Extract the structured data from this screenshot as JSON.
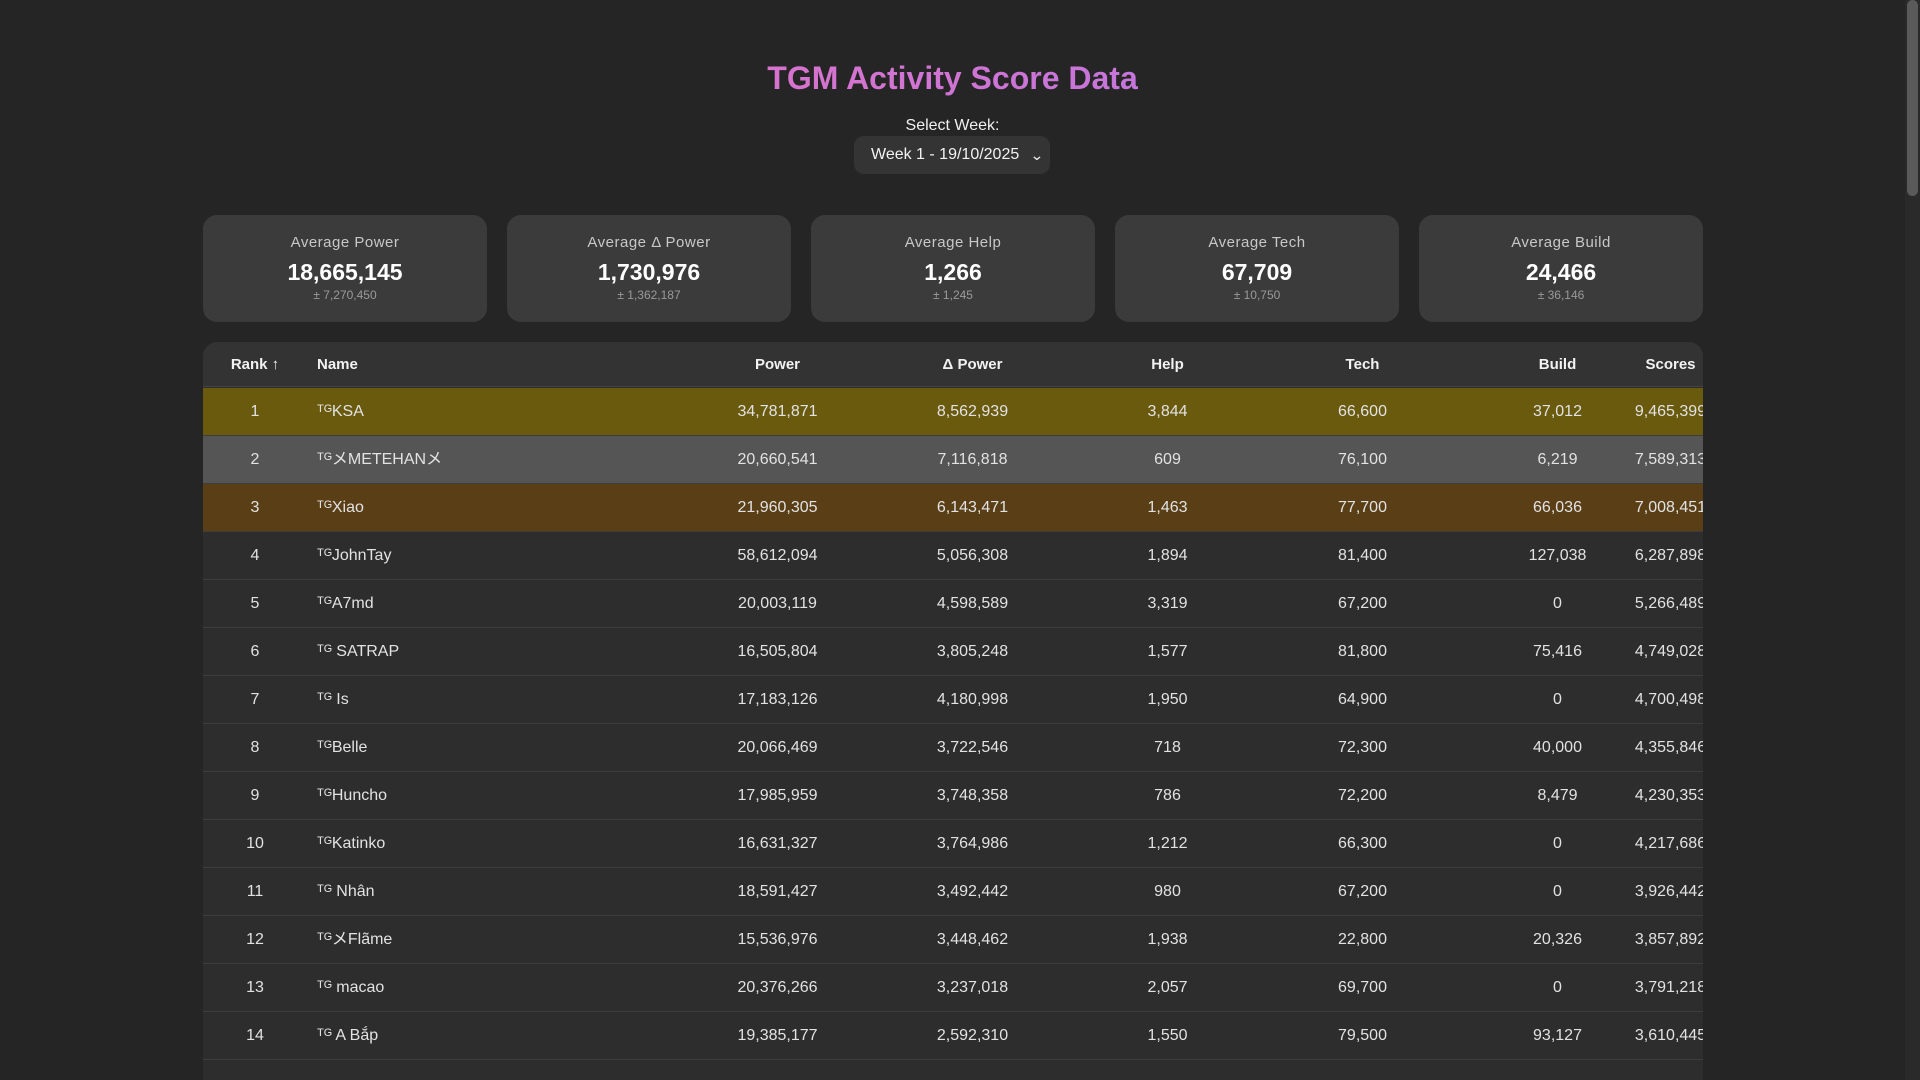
{
  "title": "TGM Activity Score Data",
  "week_label": "Select Week:",
  "week_selected": "Week 1 - 19/10/2025",
  "cards": [
    {
      "label": "Average Power",
      "value": "18,665,145",
      "std": "± 7,270,450"
    },
    {
      "label": "Average Δ Power",
      "value": "1,730,976",
      "std": "± 1,362,187"
    },
    {
      "label": "Average Help",
      "value": "1,266",
      "std": "± 1,245"
    },
    {
      "label": "Average Tech",
      "value": "67,709",
      "std": "± 10,750"
    },
    {
      "label": "Average Build",
      "value": "24,466",
      "std": "± 36,146"
    }
  ],
  "table": {
    "headers": {
      "rank": "Rank ↑",
      "name": "Name",
      "power": "Power",
      "dpower": "Δ Power",
      "help": "Help",
      "tech": "Tech",
      "build": "Build",
      "scores": "Scores"
    },
    "rows": [
      {
        "rank": "1",
        "name": "ᵀᴳKSA",
        "power": "34,781,871",
        "dpower": "8,562,939",
        "help": "3,844",
        "tech": "66,600",
        "build": "37,012",
        "scores": "9,465,399"
      },
      {
        "rank": "2",
        "name": "ᵀᴳメMETEHANメ",
        "power": "20,660,541",
        "dpower": "7,116,818",
        "help": "609",
        "tech": "76,100",
        "build": "6,219",
        "scores": "7,589,313"
      },
      {
        "rank": "3",
        "name": "ᵀᴳXiao",
        "power": "21,960,305",
        "dpower": "6,143,471",
        "help": "1,463",
        "tech": "77,700",
        "build": "66,036",
        "scores": "7,008,451"
      },
      {
        "rank": "4",
        "name": "ᵀᴳJohnTay",
        "power": "58,612,094",
        "dpower": "5,056,308",
        "help": "1,894",
        "tech": "81,400",
        "build": "127,038",
        "scores": "6,287,898"
      },
      {
        "rank": "5",
        "name": "ᵀᴳA7md",
        "power": "20,003,119",
        "dpower": "4,598,589",
        "help": "3,319",
        "tech": "67,200",
        "build": "0",
        "scores": "5,266,489"
      },
      {
        "rank": "6",
        "name": "ᵀᴳ SATRAP",
        "power": "16,505,804",
        "dpower": "3,805,248",
        "help": "1,577",
        "tech": "81,800",
        "build": "75,416",
        "scores": "4,749,028"
      },
      {
        "rank": "7",
        "name": "ᵀᴳ Is",
        "power": "17,183,126",
        "dpower": "4,180,998",
        "help": "1,950",
        "tech": "64,900",
        "build": "0",
        "scores": "4,700,498"
      },
      {
        "rank": "8",
        "name": "ᵀᴳBelle",
        "power": "20,066,469",
        "dpower": "3,722,546",
        "help": "718",
        "tech": "72,300",
        "build": "40,000",
        "scores": "4,355,846"
      },
      {
        "rank": "9",
        "name": "ᵀᴳHuncho",
        "power": "17,985,959",
        "dpower": "3,748,358",
        "help": "786",
        "tech": "72,200",
        "build": "8,479",
        "scores": "4,230,353"
      },
      {
        "rank": "10",
        "name": "ᵀᴳKatinko",
        "power": "16,631,327",
        "dpower": "3,764,986",
        "help": "1,212",
        "tech": "66,300",
        "build": "0",
        "scores": "4,217,686"
      },
      {
        "rank": "11",
        "name": "ᵀᴳ Nhân",
        "power": "18,591,427",
        "dpower": "3,492,442",
        "help": "980",
        "tech": "67,200",
        "build": "0",
        "scores": "3,926,442"
      },
      {
        "rank": "12",
        "name": "ᵀᴳメFlãme",
        "power": "15,536,976",
        "dpower": "3,448,462",
        "help": "1,938",
        "tech": "22,800",
        "build": "20,326",
        "scores": "3,857,892"
      },
      {
        "rank": "13",
        "name": "ᵀᴳ macao",
        "power": "20,376,266",
        "dpower": "3,237,018",
        "help": "2,057",
        "tech": "69,700",
        "build": "0",
        "scores": "3,791,218"
      },
      {
        "rank": "14",
        "name": "ᵀᴳ A Bắp",
        "power": "19,385,177",
        "dpower": "2,592,310",
        "help": "1,550",
        "tech": "79,500",
        "build": "93,127",
        "scores": "3,610,445"
      }
    ]
  },
  "colors": {
    "background": "#252525",
    "title_gradient_start": "#f36fb4",
    "title_gradient_end": "#9a7cf6",
    "rank1_row": "#6a5a0e",
    "rank2_row": "#555555",
    "rank3_row": "#5a3f16"
  },
  "icons": {
    "select_caret": "chevron-down-icon"
  }
}
